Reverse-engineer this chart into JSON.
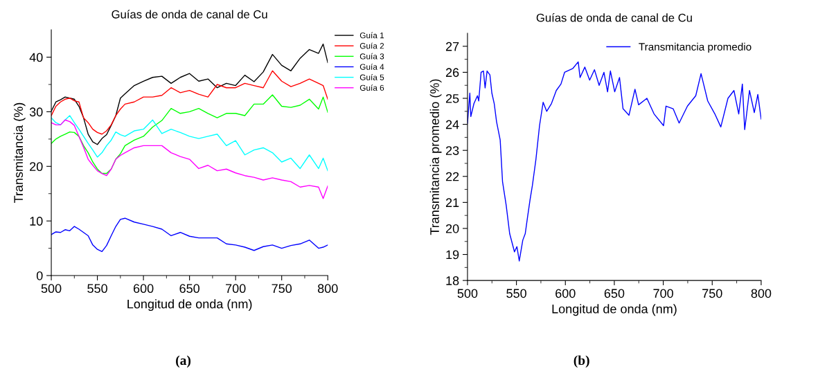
{
  "chart_data": [
    {
      "type": "line",
      "title": "Guías de onda de canal de Cu",
      "xlabel": "Longitud de onda (nm)",
      "ylabel": "Transmitancia (%)",
      "x": [
        500,
        505,
        510,
        515,
        520,
        525,
        530,
        535,
        540,
        545,
        550,
        555,
        560,
        565,
        570,
        575,
        580,
        590,
        600,
        610,
        620,
        630,
        640,
        650,
        660,
        670,
        680,
        690,
        700,
        710,
        720,
        730,
        740,
        750,
        760,
        770,
        780,
        790,
        795,
        800
      ],
      "series": [
        {
          "name": "Guía 1",
          "color": "#000000",
          "values": [
            30.1,
            31.8,
            32.2,
            32.7,
            32.5,
            32.3,
            31,
            28.9,
            25.9,
            24.5,
            24,
            25.1,
            25.8,
            27.5,
            29.3,
            32.5,
            33.3,
            34.8,
            35.6,
            36.3,
            36.5,
            35.2,
            36.3,
            37,
            35.6,
            36,
            34.4,
            35.2,
            34.8,
            36.7,
            35.5,
            37.3,
            40.5,
            38.5,
            37.5,
            39.8,
            41.4,
            40.7,
            42.4,
            39
          ]
        },
        {
          "name": "Guía 2",
          "color": "#ff0000",
          "values": [
            29.3,
            31,
            31.8,
            32.3,
            32.5,
            32,
            31.8,
            28.9,
            28,
            26.8,
            26.2,
            25.9,
            26.5,
            27.6,
            29.3,
            30.5,
            31.4,
            31.8,
            32.7,
            32.7,
            33,
            34.4,
            33.5,
            33.9,
            33.2,
            32.7,
            35,
            34.4,
            34.4,
            35.2,
            34.8,
            34.4,
            37.5,
            35.6,
            34.6,
            35.2,
            36,
            35.2,
            34.8,
            32.3
          ]
        },
        {
          "name": "Guía 3",
          "color": "#00ff00",
          "values": [
            24.2,
            25,
            25.5,
            25.9,
            26.3,
            26.2,
            25.5,
            23.8,
            22.5,
            20.8,
            19.5,
            18.7,
            18.7,
            19.5,
            21.3,
            22.3,
            23.8,
            24.8,
            25.5,
            27.2,
            28.4,
            30.6,
            29.7,
            30,
            30.6,
            29.7,
            28.9,
            29.7,
            29.7,
            29.3,
            31.4,
            31.4,
            33.1,
            31,
            30.8,
            31.2,
            32.3,
            30.5,
            32.7,
            29.9
          ]
        },
        {
          "name": "Guía 4",
          "color": "#0000ff",
          "values": [
            7.5,
            8,
            7.9,
            8.4,
            8.2,
            9,
            8.5,
            7.9,
            7.3,
            5.6,
            4.8,
            4.4,
            5.5,
            7.3,
            9,
            10.3,
            10.5,
            9.8,
            9.4,
            9,
            8.5,
            7.3,
            7.9,
            7.2,
            6.9,
            6.9,
            6.9,
            5.8,
            5.6,
            5.2,
            4.6,
            5.3,
            5.6,
            5,
            5.5,
            5.8,
            6.5,
            5,
            5.2,
            5.6
          ]
        },
        {
          "name": "Guía 5",
          "color": "#00ffff",
          "values": [
            28.9,
            28,
            27.6,
            28.5,
            29.3,
            28,
            26.8,
            25.5,
            24.2,
            23,
            21.7,
            22.5,
            23.8,
            24.8,
            26.3,
            25.8,
            25.5,
            26.5,
            26.8,
            28.5,
            26,
            26.8,
            26.2,
            25.5,
            25.1,
            25.5,
            25.9,
            23.8,
            24.7,
            22.1,
            23,
            23.4,
            22.5,
            20.8,
            21.5,
            19.6,
            22.1,
            19.6,
            21.5,
            19.2
          ]
        },
        {
          "name": "Guía 6",
          "color": "#ff00ff",
          "values": [
            28,
            27.6,
            27.6,
            28.5,
            28.2,
            27.5,
            25.5,
            23.5,
            21.3,
            20.2,
            19.2,
            18.7,
            18.3,
            19.5,
            21.3,
            22,
            22.5,
            23.4,
            23.8,
            23.8,
            23.8,
            22.5,
            21.8,
            21.3,
            19.6,
            20.2,
            19.2,
            19.5,
            18.8,
            18.3,
            18,
            17.5,
            17.9,
            17.5,
            17.2,
            16.2,
            16.5,
            16.2,
            14.1,
            16.4
          ]
        }
      ],
      "xlim": [
        500,
        800
      ],
      "xticks": [
        500,
        {
          "value": 525,
          "label": null
        },
        550,
        {
          "value": 575,
          "label": null
        },
        600,
        {
          "value": 625,
          "label": null
        },
        650,
        {
          "value": 675,
          "label": null
        },
        700,
        {
          "value": 725,
          "label": null
        },
        750,
        {
          "value": 775,
          "label": null
        },
        800
      ],
      "ylim": [
        0,
        45
      ],
      "yticks": [
        0,
        {
          "value": 5,
          "label": null
        },
        10,
        {
          "value": 15,
          "label": null
        },
        20,
        {
          "value": 25,
          "label": null
        },
        30,
        {
          "value": 35,
          "label": null
        },
        40
      ],
      "legend": "right",
      "grid": false,
      "annotations": [
        "(a)"
      ]
    },
    {
      "type": "line",
      "title": "Guías de onda de canal de Cu",
      "xlabel": "Longitud de onda (nm)",
      "ylabel": "Transmitancia promedio (%)",
      "series": [
        {
          "name": "Transmitancia promedio",
          "color": "#0000ff",
          "x": [
            500,
            502.4,
            503.4,
            506.6,
            510.2,
            511.5,
            513.9,
            516.3,
            518,
            520,
            522.9,
            524.9,
            527.3,
            529.7,
            533.4,
            535.8,
            539.5,
            543.1,
            548,
            550.5,
            552.9,
            556.5,
            559,
            561.4,
            563.9,
            566.3,
            569.9,
            573.6,
            577.3,
            580.9,
            585.8,
            590.7,
            595.5,
            599.2,
            607.7,
            613.1,
            615,
            619.9,
            624.8,
            629.7,
            634.5,
            639.4,
            643.1,
            646,
            650.4,
            655.3,
            658.9,
            665,
            671.1,
            674.8,
            683.3,
            690.6,
            700.3,
            702.8,
            710.1,
            716.2,
            724.7,
            733.2,
            738.6,
            745.4,
            752.7,
            758.8,
            766.1,
            772.2,
            777.1,
            780.8,
            783.2,
            788.1,
            793,
            796.6,
            800
          ],
          "values": [
            24.04,
            25.2,
            24.3,
            24.8,
            25.1,
            24.9,
            26,
            26.05,
            25.4,
            26.05,
            25.9,
            25.2,
            24.8,
            24.1,
            23.4,
            21.8,
            20.9,
            19.8,
            19.1,
            19.3,
            18.75,
            19.55,
            19.8,
            20.45,
            21.1,
            21.65,
            22.65,
            23.95,
            24.85,
            24.5,
            24.8,
            25.3,
            25.55,
            26,
            26.15,
            26.4,
            25.8,
            26.2,
            25.7,
            26.1,
            25.5,
            26,
            25.25,
            26.05,
            25.25,
            25.8,
            24.6,
            24.35,
            25.35,
            24.75,
            25,
            24.4,
            23.95,
            24.7,
            24.6,
            24.05,
            24.7,
            25.1,
            25.95,
            24.9,
            24.4,
            23.9,
            25,
            25.3,
            24.4,
            25.55,
            23.8,
            25.3,
            24.45,
            25.15,
            24.2
          ]
        }
      ],
      "xlim": [
        500,
        800
      ],
      "xticks": [
        500,
        {
          "value": 525,
          "label": null
        },
        550,
        {
          "value": 575,
          "label": null
        },
        600,
        {
          "value": 625,
          "label": null
        },
        650,
        {
          "value": 675,
          "label": null
        },
        700,
        {
          "value": 725,
          "label": null
        },
        750,
        {
          "value": 775,
          "label": null
        },
        800
      ],
      "ylim": [
        18,
        27.5
      ],
      "yticks": [
        18,
        {
          "value": 18.5,
          "label": null
        },
        19,
        {
          "value": 19.5,
          "label": null
        },
        20,
        {
          "value": 20.5,
          "label": null
        },
        21,
        {
          "value": 21.5,
          "label": null
        },
        22,
        {
          "value": 22.5,
          "label": null
        },
        23,
        {
          "value": 23.5,
          "label": null
        },
        24,
        {
          "value": 24.5,
          "label": null
        },
        25,
        {
          "value": 25.5,
          "label": null
        },
        26,
        {
          "value": 26.5,
          "label": null
        },
        27
      ],
      "legend": "top right",
      "grid": false,
      "annotations": [
        "(b)"
      ]
    }
  ]
}
